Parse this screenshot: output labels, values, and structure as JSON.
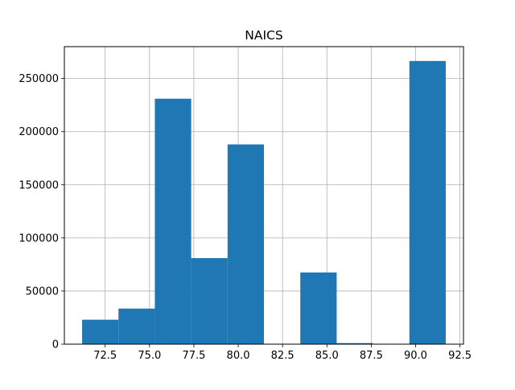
{
  "chart_data": {
    "type": "bar",
    "histogram": true,
    "title": "NAICS",
    "xlabel": "",
    "ylabel": "",
    "xlim": [
      70.2,
      92.7
    ],
    "ylim": [
      0,
      280000
    ],
    "grid": true,
    "bar_color": "#1f77b4",
    "bins": [
      {
        "x0": 71.2,
        "x1": 73.25,
        "count": 23000
      },
      {
        "x0": 73.25,
        "x1": 75.3,
        "count": 33500
      },
      {
        "x0": 75.3,
        "x1": 77.35,
        "count": 231000
      },
      {
        "x0": 77.35,
        "x1": 79.4,
        "count": 81000
      },
      {
        "x0": 79.4,
        "x1": 81.45,
        "count": 188000
      },
      {
        "x0": 81.45,
        "x1": 83.5,
        "count": 0
      },
      {
        "x0": 83.5,
        "x1": 85.55,
        "count": 67500
      },
      {
        "x0": 85.55,
        "x1": 87.6,
        "count": 1000
      },
      {
        "x0": 87.6,
        "x1": 89.65,
        "count": 0
      },
      {
        "x0": 89.65,
        "x1": 91.7,
        "count": 266500
      }
    ],
    "x_ticks": [
      {
        "value": 72.5,
        "label": "72.5"
      },
      {
        "value": 75.0,
        "label": "75.0"
      },
      {
        "value": 77.5,
        "label": "77.5"
      },
      {
        "value": 80.0,
        "label": "80.0"
      },
      {
        "value": 82.5,
        "label": "82.5"
      },
      {
        "value": 85.0,
        "label": "85.0"
      },
      {
        "value": 87.5,
        "label": "87.5"
      },
      {
        "value": 90.0,
        "label": "90.0"
      },
      {
        "value": 92.5,
        "label": "92.5"
      }
    ],
    "y_ticks": [
      {
        "value": 0,
        "label": "0"
      },
      {
        "value": 50000,
        "label": "50000"
      },
      {
        "value": 100000,
        "label": "100000"
      },
      {
        "value": 150000,
        "label": "150000"
      },
      {
        "value": 200000,
        "label": "200000"
      },
      {
        "value": 250000,
        "label": "250000"
      }
    ]
  }
}
